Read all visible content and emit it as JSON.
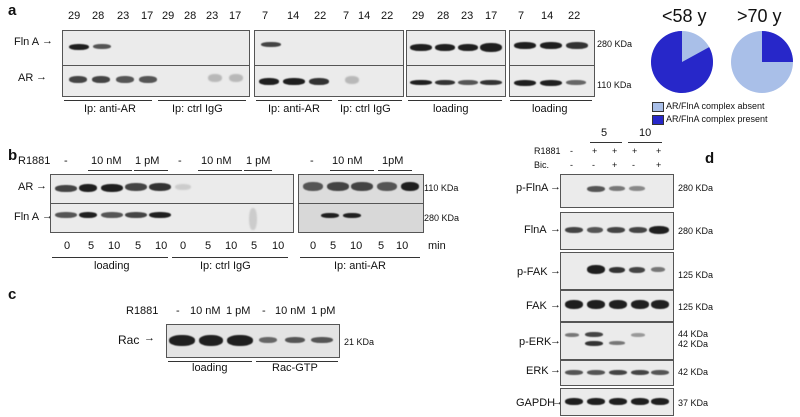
{
  "panels": {
    "a": "a",
    "b": "b",
    "c": "c",
    "d": "d"
  },
  "a": {
    "lanes_group1": [
      "29",
      "28",
      "23",
      "17",
      "29",
      "28",
      "23",
      "17"
    ],
    "lanes_group2": [
      "7",
      "14",
      "22",
      "7",
      "14",
      "22"
    ],
    "lanes_group3": [
      "29",
      "28",
      "23",
      "17",
      "7",
      "14",
      "22"
    ],
    "row_fln": "Fln A",
    "row_ar": "AR",
    "kda_280": "280 KDa",
    "kda_110": "110 KDa",
    "captions": [
      "Ip: anti-AR",
      "Ip: ctrl IgG",
      "Ip: anti-AR",
      "Ip: ctrl IgG",
      "loading",
      "loading"
    ],
    "pie_left_title": "<58 y",
    "pie_right_title": ">70 y",
    "legend_absent": "AR/FlnA complex absent",
    "legend_present": "AR/FlnA complex present",
    "colors": {
      "absent": "#a9bfe8",
      "present": "#2727c9"
    },
    "pie_left_present_fraction": 0.83,
    "pie_right_present_fraction": 0.25
  },
  "b": {
    "r1881": "R1881",
    "dose_labels": [
      "-",
      "10 nM",
      "1 pM",
      "-",
      "10 nM",
      "1 pM",
      "-",
      "10 nM",
      "1pM"
    ],
    "row_ar": "AR",
    "row_fln": "Fln A",
    "times": [
      "0",
      "5",
      "10",
      "5",
      "10",
      "0",
      "5",
      "10",
      "5",
      "10",
      "0",
      "5",
      "10",
      "5",
      "10"
    ],
    "min": "min",
    "kda_110": "110 KDa",
    "kda_280": "280 KDa",
    "captions": [
      "loading",
      "Ip: ctrl IgG",
      "Ip: anti-AR"
    ]
  },
  "c": {
    "r1881": "R1881",
    "dose_labels": [
      "-",
      "10 nM",
      "1 pM",
      "-",
      "10 nM",
      "1 pM"
    ],
    "row": "Rac",
    "kda": "21 KDa",
    "captions": [
      "loading",
      "Rac-GTP"
    ]
  },
  "d": {
    "time_labels": [
      "5",
      "10"
    ],
    "r1881": "R1881",
    "bic": "Bic.",
    "r1881_signs": [
      "-",
      "+",
      "+",
      "+",
      "+"
    ],
    "bic_signs": [
      "-",
      "-",
      "+",
      "-",
      "+"
    ],
    "rows": [
      "p-FlnA",
      "FlnA",
      "p-FAK",
      "FAK",
      "p-ERK",
      "ERK",
      "GAPDH"
    ],
    "kdas": [
      "280 KDa",
      "280 KDa",
      "125 KDa",
      "125 KDa",
      "44 KDa",
      "42 KDa",
      "42 KDa",
      "37 KDa"
    ]
  }
}
